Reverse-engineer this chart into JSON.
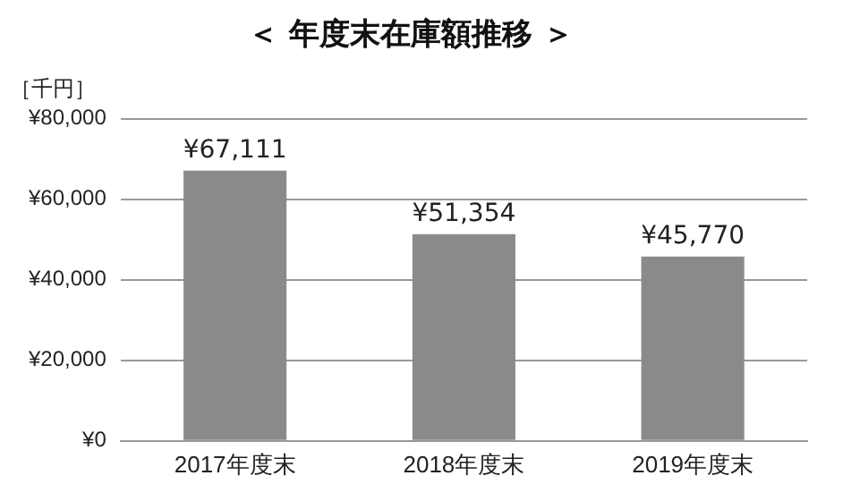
{
  "chart_data": {
    "type": "bar",
    "title": "＜ 年度末在庫額推移 ＞",
    "ylabel": "［千円］",
    "categories": [
      "2017年度末",
      "2018年度末",
      "2019年度末"
    ],
    "values": [
      67111,
      51354,
      45770
    ],
    "value_labels": [
      "¥67,111",
      "¥51,354",
      "¥45,770"
    ],
    "color": "#8a8a8a",
    "ylim": [
      0,
      80000
    ],
    "yticks": [
      {
        "value": 0,
        "label": "¥0"
      },
      {
        "value": 20000,
        "label": "¥20,000"
      },
      {
        "value": 40000,
        "label": "¥40,000"
      },
      {
        "value": 60000,
        "label": "¥60,000"
      },
      {
        "value": 80000,
        "label": "¥80,000"
      }
    ],
    "grid": "y",
    "legend": false
  }
}
